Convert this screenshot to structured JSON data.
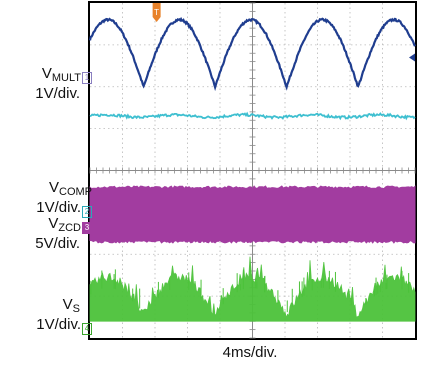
{
  "chart_data": {
    "type": "line",
    "x_unit_label": "4ms/div.",
    "divisions": {
      "x": 10,
      "y": 8
    },
    "trigger_marker": {
      "label": "T",
      "color": "#e8822a"
    },
    "channels": [
      {
        "id": "1",
        "name": "V",
        "name_sub": "MULT",
        "scale": "1V/div.",
        "color": "#1f3d8f",
        "shape": "rectified-sine",
        "x": [
          0,
          1,
          2,
          3,
          4,
          5,
          6,
          7,
          8,
          9,
          10
        ],
        "y_div": [
          7.4,
          7.6,
          6.0,
          7.6,
          6.0,
          7.6,
          6.0,
          7.6,
          6.0,
          7.6,
          6.4
        ],
        "period_div": 2.2,
        "top_div": 7.6,
        "bottom_div": 6.0
      },
      {
        "id": "2",
        "name": "V",
        "name_sub": "COMP",
        "scale": "1V/div.",
        "color": "#3ebfd0",
        "shape": "flat",
        "level_div": 5.3
      },
      {
        "id": "3",
        "name": "V",
        "name_sub": "ZCD",
        "scale": "5V/div.",
        "color": "#a23ca0",
        "shape": "band",
        "top_div": 3.6,
        "bottom_div": 2.3
      },
      {
        "id": "4",
        "name": "V",
        "name_sub": "S",
        "scale": "1V/div.",
        "color": "#4cc23a",
        "shape": "noisy-rectified",
        "top_div": 1.6,
        "bottom_div": 0.4,
        "period_div": 2.2
      }
    ]
  }
}
